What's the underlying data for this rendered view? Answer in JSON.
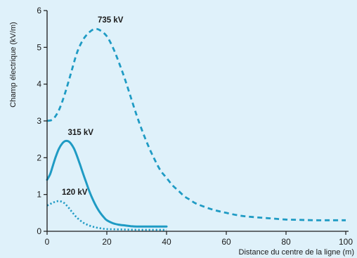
{
  "chart_data": {
    "type": "line",
    "title": "",
    "xlabel": "Distance du centre de la ligne (m)",
    "ylabel": "Champ électrique (kV/m)",
    "xlim": [
      0,
      100
    ],
    "ylim": [
      0,
      6
    ],
    "x_ticks": [
      0,
      20,
      40,
      60,
      80,
      100
    ],
    "y_ticks": [
      0,
      1,
      2,
      3,
      4,
      5,
      6
    ],
    "grid": false,
    "legend": "none",
    "colors": {
      "series": "#1f9bc4",
      "axis": "#1a1a1a",
      "background": "#dff1fa"
    },
    "series": [
      {
        "name": "735 kV",
        "style": "dashed",
        "points": [
          [
            0,
            3.0
          ],
          [
            2,
            3.05
          ],
          [
            4,
            3.3
          ],
          [
            6,
            3.75
          ],
          [
            8,
            4.3
          ],
          [
            10,
            4.85
          ],
          [
            12,
            5.2
          ],
          [
            14,
            5.4
          ],
          [
            16,
            5.5
          ],
          [
            18,
            5.45
          ],
          [
            20,
            5.3
          ],
          [
            22,
            5.0
          ],
          [
            24,
            4.6
          ],
          [
            26,
            4.15
          ],
          [
            28,
            3.65
          ],
          [
            30,
            3.15
          ],
          [
            32,
            2.7
          ],
          [
            34,
            2.3
          ],
          [
            36,
            1.95
          ],
          [
            38,
            1.65
          ],
          [
            40,
            1.45
          ],
          [
            42,
            1.25
          ],
          [
            44,
            1.1
          ],
          [
            46,
            0.95
          ],
          [
            48,
            0.85
          ],
          [
            50,
            0.75
          ],
          [
            55,
            0.6
          ],
          [
            60,
            0.5
          ],
          [
            65,
            0.42
          ],
          [
            70,
            0.38
          ],
          [
            75,
            0.35
          ],
          [
            80,
            0.32
          ],
          [
            85,
            0.31
          ],
          [
            90,
            0.3
          ],
          [
            95,
            0.3
          ],
          [
            100,
            0.3
          ]
        ]
      },
      {
        "name": "315 kV",
        "style": "solid",
        "points": [
          [
            0,
            1.4
          ],
          [
            1,
            1.55
          ],
          [
            2,
            1.8
          ],
          [
            3,
            2.05
          ],
          [
            4,
            2.25
          ],
          [
            5,
            2.38
          ],
          [
            6,
            2.45
          ],
          [
            7,
            2.45
          ],
          [
            8,
            2.38
          ],
          [
            9,
            2.25
          ],
          [
            10,
            2.05
          ],
          [
            11,
            1.82
          ],
          [
            12,
            1.58
          ],
          [
            13,
            1.35
          ],
          [
            14,
            1.12
          ],
          [
            15,
            0.92
          ],
          [
            16,
            0.75
          ],
          [
            17,
            0.6
          ],
          [
            18,
            0.48
          ],
          [
            19,
            0.38
          ],
          [
            20,
            0.3
          ],
          [
            22,
            0.22
          ],
          [
            24,
            0.18
          ],
          [
            26,
            0.16
          ],
          [
            28,
            0.14
          ],
          [
            30,
            0.13
          ],
          [
            35,
            0.13
          ],
          [
            40,
            0.13
          ]
        ]
      },
      {
        "name": "120 kV",
        "style": "dotted",
        "points": [
          [
            0,
            0.7
          ],
          [
            1,
            0.74
          ],
          [
            2,
            0.78
          ],
          [
            3,
            0.81
          ],
          [
            4,
            0.82
          ],
          [
            5,
            0.8
          ],
          [
            6,
            0.75
          ],
          [
            7,
            0.66
          ],
          [
            8,
            0.56
          ],
          [
            9,
            0.46
          ],
          [
            10,
            0.37
          ],
          [
            12,
            0.24
          ],
          [
            14,
            0.16
          ],
          [
            16,
            0.11
          ],
          [
            18,
            0.08
          ],
          [
            20,
            0.06
          ],
          [
            25,
            0.05
          ],
          [
            30,
            0.04
          ],
          [
            35,
            0.04
          ],
          [
            40,
            0.04
          ]
        ]
      }
    ]
  }
}
